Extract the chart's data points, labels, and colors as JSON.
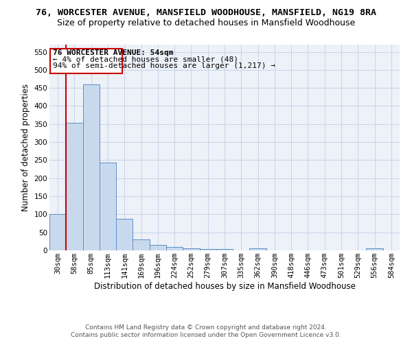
{
  "title1": "76, WORCESTER AVENUE, MANSFIELD WOODHOUSE, MANSFIELD, NG19 8RA",
  "title2": "Size of property relative to detached houses in Mansfield Woodhouse",
  "xlabel": "Distribution of detached houses by size in Mansfield Woodhouse",
  "ylabel": "Number of detached properties",
  "footnote1": "Contains HM Land Registry data © Crown copyright and database right 2024.",
  "footnote2": "Contains public sector information licensed under the Open Government Licence v3.0.",
  "annotation_line1": "76 WORCESTER AVENUE: 54sqm",
  "annotation_line2": "← 4% of detached houses are smaller (48)",
  "annotation_line3": "94% of semi-detached houses are larger (1,217) →",
  "bar_color": "#c9d9ed",
  "bar_edge_color": "#5b8fc7",
  "red_line_color": "#cc0000",
  "annotation_box_edge": "#cc0000",
  "grid_color": "#c8d4e8",
  "bg_color": "#edf1f8",
  "categories": [
    "30sqm",
    "58sqm",
    "85sqm",
    "113sqm",
    "141sqm",
    "169sqm",
    "196sqm",
    "224sqm",
    "252sqm",
    "279sqm",
    "307sqm",
    "335sqm",
    "362sqm",
    "390sqm",
    "418sqm",
    "446sqm",
    "473sqm",
    "501sqm",
    "529sqm",
    "556sqm",
    "584sqm"
  ],
  "values": [
    101,
    354,
    459,
    244,
    87,
    30,
    15,
    9,
    5,
    4,
    4,
    0,
    5,
    0,
    0,
    0,
    0,
    0,
    0,
    5,
    0
  ],
  "ylim": [
    0,
    570
  ],
  "yticks": [
    0,
    50,
    100,
    150,
    200,
    250,
    300,
    350,
    400,
    450,
    500,
    550
  ],
  "red_line_x": 0.5,
  "title1_fontsize": 9.5,
  "title2_fontsize": 9,
  "ylabel_fontsize": 8.5,
  "xlabel_fontsize": 8.5,
  "tick_fontsize": 7.5,
  "annotation_fontsize": 8,
  "footnote_fontsize": 6.5
}
